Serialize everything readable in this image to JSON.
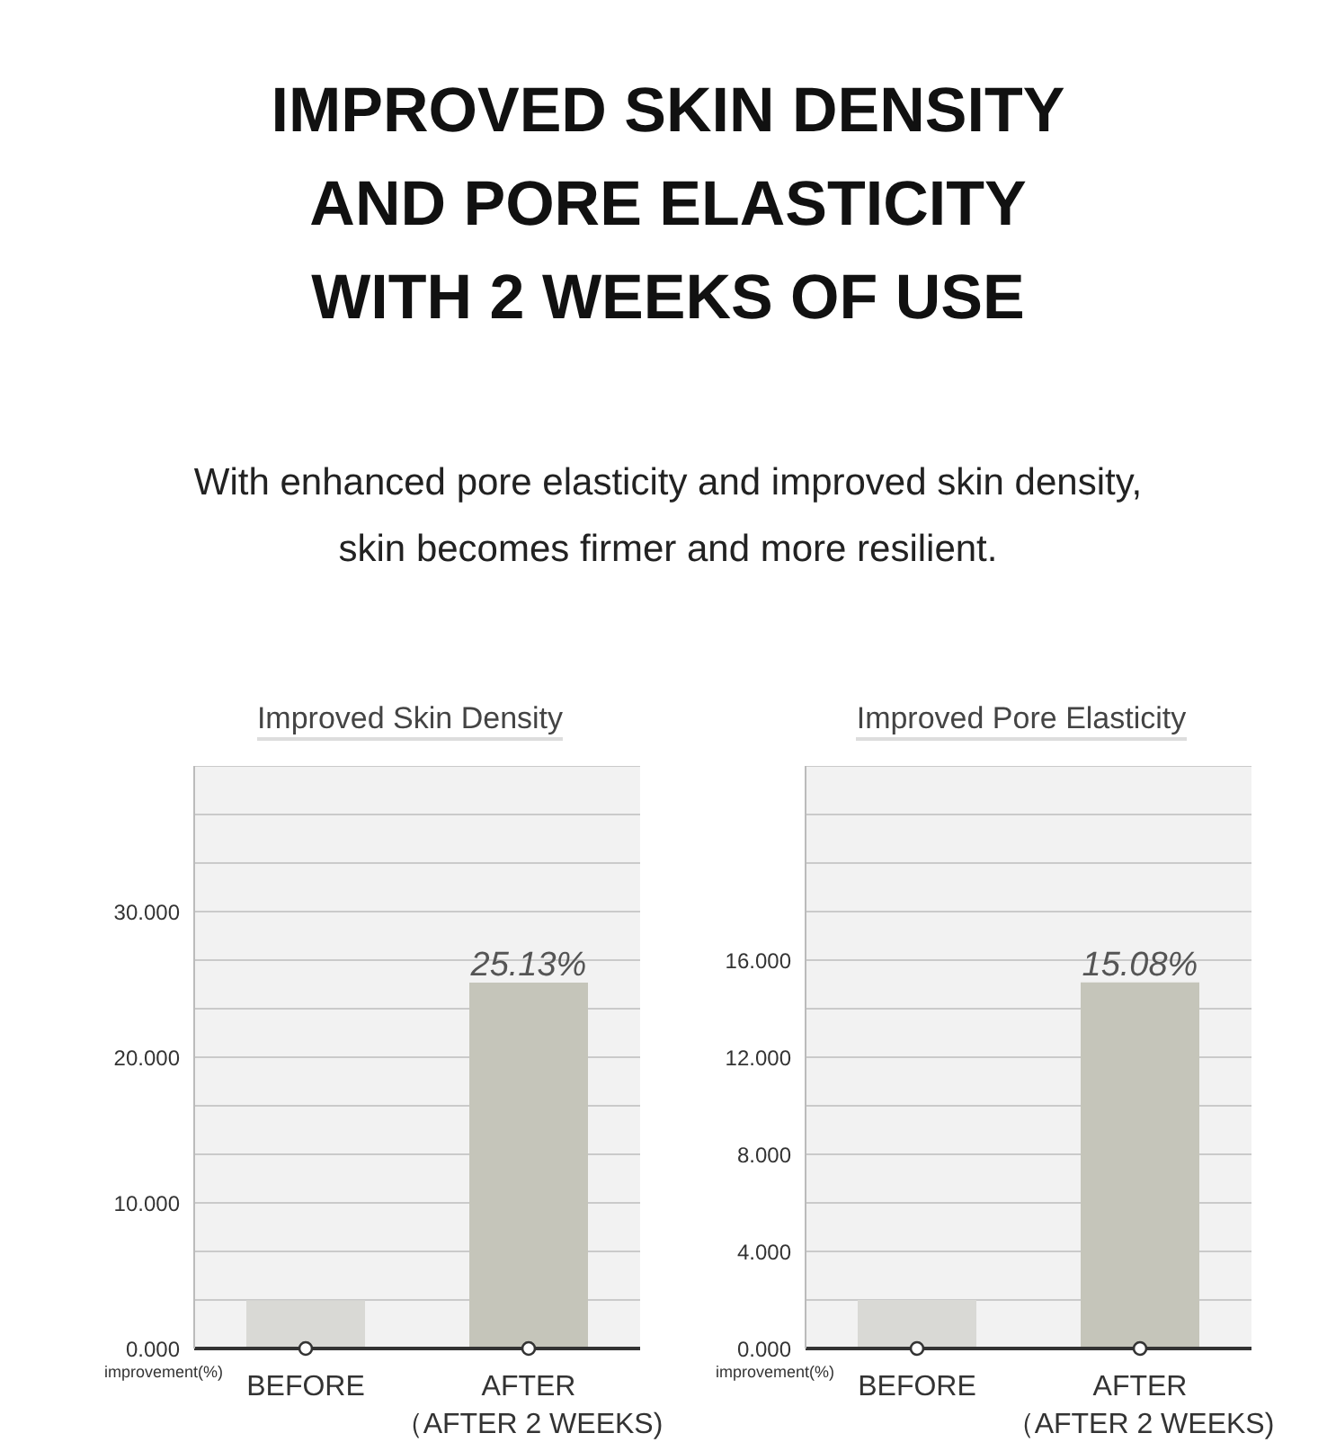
{
  "chart_data": [
    {
      "type": "bar",
      "title": "Improved Skin Density",
      "ylabel": "improvement(%)",
      "annotations": [
        "IMPROVED SKIN DENSITY\nAND PORE ELASTICITY\nWITH 2 WEEKS OF USE",
        "With enhanced pore elasticity and improved skin density,\nskin becomes firmer and more resilient."
      ],
      "categories": [
        "BEFORE",
        "AFTER\n（AFTER 2 WEEKS)"
      ],
      "values": [
        3.3,
        25.13
      ],
      "colors": [
        "#d9d9d5",
        "#c5c5ba"
      ],
      "value_labels": [
        null,
        "25.13%"
      ],
      "ylim": [
        0,
        40
      ],
      "yticks": [
        {
          "value": 0,
          "label": "0.000"
        },
        {
          "value": 3.333,
          "label": null
        },
        {
          "value": 6.667,
          "label": null
        },
        {
          "value": 10,
          "label": "10.000"
        },
        {
          "value": 13.333,
          "label": null
        },
        {
          "value": 16.667,
          "label": null
        },
        {
          "value": 20,
          "label": "20.000"
        },
        {
          "value": 23.333,
          "label": null
        },
        {
          "value": 26.667,
          "label": null
        },
        {
          "value": 30,
          "label": "30.000"
        },
        {
          "value": 33.333,
          "label": null
        },
        {
          "value": 36.667,
          "label": null
        }
      ],
      "grid": "y"
    },
    {
      "type": "bar",
      "title": "Improved Pore Elasticity",
      "ylabel": "improvement(%)",
      "categories": [
        "BEFORE",
        "AFTER\n（AFTER 2 WEEKS)"
      ],
      "values": [
        2.0,
        15.08
      ],
      "colors": [
        "#d9d9d5",
        "#c5c5ba"
      ],
      "value_labels": [
        null,
        "15.08%"
      ],
      "ylim": [
        0,
        24
      ],
      "yticks": [
        {
          "value": 0,
          "label": "0.000"
        },
        {
          "value": 2,
          "label": null
        },
        {
          "value": 4,
          "label": "4.000"
        },
        {
          "value": 6,
          "label": null
        },
        {
          "value": 8,
          "label": "8.000"
        },
        {
          "value": 10,
          "label": null
        },
        {
          "value": 12,
          "label": "12.000"
        },
        {
          "value": 14,
          "label": null
        },
        {
          "value": 16,
          "label": "16.000"
        },
        {
          "value": 18,
          "label": null
        },
        {
          "value": 20,
          "label": null
        },
        {
          "value": 22,
          "label": null
        }
      ],
      "grid": "y"
    }
  ]
}
